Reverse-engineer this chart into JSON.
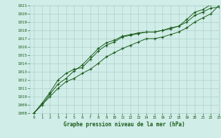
{
  "xlabel": "Graphe pression niveau de la mer (hPa)",
  "ylim": [
    1008,
    1021
  ],
  "xlim": [
    -0.5,
    23
  ],
  "yticks": [
    1008,
    1009,
    1010,
    1011,
    1012,
    1013,
    1014,
    1015,
    1016,
    1017,
    1018,
    1019,
    1020,
    1021
  ],
  "xticks": [
    0,
    1,
    2,
    3,
    4,
    5,
    6,
    7,
    8,
    9,
    10,
    11,
    12,
    13,
    14,
    15,
    16,
    17,
    18,
    19,
    20,
    21,
    22,
    23
  ],
  "bg_color": "#d0ede8",
  "grid_color": "#b0d0cc",
  "line_color": "#1a5c1a",
  "line1_y": [
    1008.0,
    1009.0,
    1010.3,
    1011.5,
    1012.2,
    1013.1,
    1013.8,
    1014.8,
    1015.8,
    1016.5,
    1016.8,
    1017.3,
    1017.5,
    1017.7,
    1017.8,
    1017.8,
    1018.0,
    1018.3,
    1018.5,
    1019.3,
    1020.2,
    1020.5,
    1021.1,
    1021.3
  ],
  "line2_y": [
    1008.0,
    1009.2,
    1010.5,
    1012.0,
    1012.8,
    1013.3,
    1013.5,
    1014.5,
    1015.5,
    1016.2,
    1016.6,
    1017.2,
    1017.4,
    1017.6,
    1017.8,
    1017.8,
    1018.0,
    1018.2,
    1018.5,
    1019.0,
    1019.8,
    1020.2,
    1020.7,
    1020.8
  ],
  "line3_y": [
    1008.0,
    1009.0,
    1010.0,
    1011.0,
    1011.8,
    1012.2,
    1012.8,
    1013.3,
    1014.0,
    1014.8,
    1015.3,
    1015.8,
    1016.2,
    1016.6,
    1017.0,
    1017.0,
    1017.2,
    1017.5,
    1017.8,
    1018.3,
    1019.0,
    1019.5,
    1020.0,
    1021.0
  ]
}
